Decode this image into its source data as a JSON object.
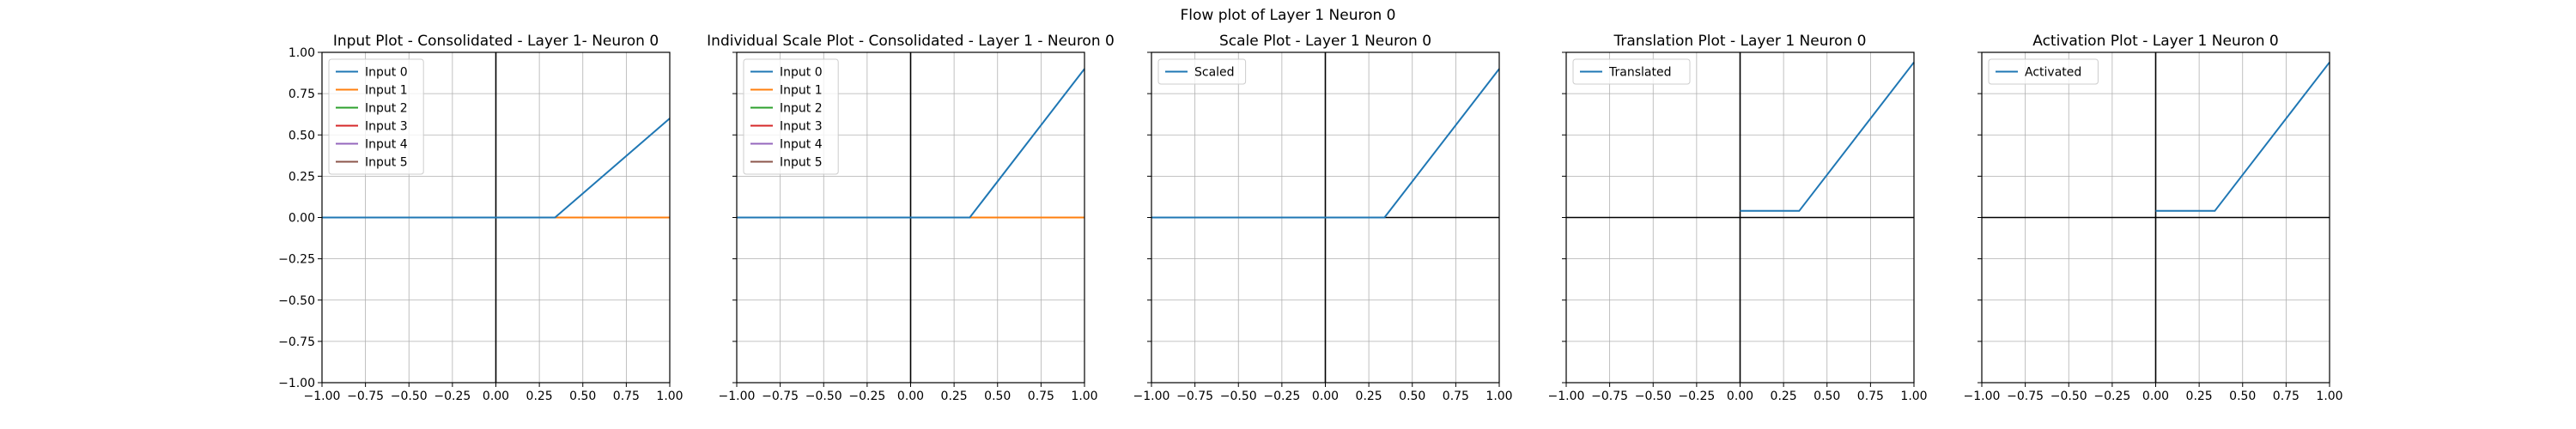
{
  "figure": {
    "suptitle": "Flow plot of Layer 1 Neuron 0"
  },
  "chart_data": [
    {
      "type": "line",
      "title": "Input Plot - Consolidated - Layer 1- Neuron 0",
      "xlim": [
        -1.0,
        1.0
      ],
      "ylim": [
        -1.0,
        1.0
      ],
      "xticks": [
        "−1.00",
        "−0.75",
        "−0.50",
        "−0.25",
        "0.00",
        "0.25",
        "0.50",
        "0.75",
        "1.00"
      ],
      "yticks": [
        "−1.00",
        "−0.75",
        "−0.50",
        "−0.25",
        "0.00",
        "0.25",
        "0.50",
        "0.75",
        "1.00"
      ],
      "show_ytick_labels": true,
      "grid": true,
      "legend_position": "top-left",
      "series": [
        {
          "name": "Input 0",
          "color": "#1f77b4",
          "x": [
            -1.0,
            0.34,
            1.0
          ],
          "y": [
            0.0,
            0.0,
            0.6
          ]
        },
        {
          "name": "Input 1",
          "color": "#ff7f0e",
          "x": [
            -1.0,
            1.0
          ],
          "y": [
            0.0,
            0.0
          ]
        },
        {
          "name": "Input 2",
          "color": "#2ca02c",
          "x": [
            -1.0,
            1.0
          ],
          "y": [
            0.0,
            0.0
          ]
        },
        {
          "name": "Input 3",
          "color": "#d62728",
          "x": [
            -1.0,
            1.0
          ],
          "y": [
            0.0,
            0.0
          ]
        },
        {
          "name": "Input 4",
          "color": "#9467bd",
          "x": [
            -1.0,
            1.0
          ],
          "y": [
            0.0,
            0.0
          ]
        },
        {
          "name": "Input 5",
          "color": "#8c564b",
          "x": [
            -1.0,
            1.0
          ],
          "y": [
            0.0,
            0.0
          ]
        }
      ]
    },
    {
      "type": "line",
      "title": "Individual Scale Plot - Consolidated - Layer 1 - Neuron 0",
      "xlim": [
        -1.0,
        1.0
      ],
      "ylim": [
        -1.0,
        1.0
      ],
      "xticks": [
        "−1.00",
        "−0.75",
        "−0.50",
        "−0.25",
        "0.00",
        "0.25",
        "0.50",
        "0.75",
        "1.00"
      ],
      "yticks": [],
      "show_ytick_labels": false,
      "grid": true,
      "legend_position": "top-left",
      "series": [
        {
          "name": "Input 0",
          "color": "#1f77b4",
          "x": [
            -1.0,
            0.34,
            1.0
          ],
          "y": [
            0.0,
            0.0,
            0.9
          ]
        },
        {
          "name": "Input 1",
          "color": "#ff7f0e",
          "x": [
            -1.0,
            1.0
          ],
          "y": [
            0.0,
            0.0
          ]
        },
        {
          "name": "Input 2",
          "color": "#2ca02c",
          "x": [
            -1.0,
            1.0
          ],
          "y": [
            0.0,
            0.0
          ]
        },
        {
          "name": "Input 3",
          "color": "#d62728",
          "x": [
            -1.0,
            1.0
          ],
          "y": [
            0.0,
            0.0
          ]
        },
        {
          "name": "Input 4",
          "color": "#9467bd",
          "x": [
            -1.0,
            1.0
          ],
          "y": [
            0.0,
            0.0
          ]
        },
        {
          "name": "Input 5",
          "color": "#8c564b",
          "x": [
            -1.0,
            1.0
          ],
          "y": [
            0.0,
            0.0
          ]
        }
      ]
    },
    {
      "type": "line",
      "title": "Scale Plot - Layer 1 Neuron 0",
      "xlim": [
        -1.0,
        1.0
      ],
      "ylim": [
        -1.0,
        1.0
      ],
      "xticks": [
        "−1.00",
        "−0.75",
        "−0.50",
        "−0.25",
        "0.00",
        "0.25",
        "0.50",
        "0.75",
        "1.00"
      ],
      "yticks": [],
      "show_ytick_labels": false,
      "grid": true,
      "legend_position": "top-left",
      "series": [
        {
          "name": "Scaled",
          "color": "#1f77b4",
          "x": [
            -1.0,
            0.34,
            1.0
          ],
          "y": [
            0.0,
            0.0,
            0.9
          ]
        }
      ]
    },
    {
      "type": "line",
      "title": "Translation Plot - Layer 1 Neuron 0",
      "xlim": [
        -1.0,
        1.0
      ],
      "ylim": [
        -1.0,
        1.0
      ],
      "xticks": [
        "−1.00",
        "−0.75",
        "−0.50",
        "−0.25",
        "0.00",
        "0.25",
        "0.50",
        "0.75",
        "1.00"
      ],
      "yticks": [],
      "show_ytick_labels": false,
      "grid": true,
      "legend_position": "top-left",
      "series": [
        {
          "name": "Translated",
          "color": "#1f77b4",
          "x": [
            0.0,
            0.34,
            1.0
          ],
          "y": [
            0.04,
            0.04,
            0.94
          ]
        }
      ]
    },
    {
      "type": "line",
      "title": "Activation Plot - Layer 1 Neuron 0",
      "xlim": [
        -1.0,
        1.0
      ],
      "ylim": [
        -1.0,
        1.0
      ],
      "xticks": [
        "−1.00",
        "−0.75",
        "−0.50",
        "−0.25",
        "0.00",
        "0.25",
        "0.50",
        "0.75",
        "1.00"
      ],
      "yticks": [],
      "show_ytick_labels": false,
      "grid": true,
      "legend_position": "top-left",
      "series": [
        {
          "name": "Activated",
          "color": "#1f77b4",
          "x": [
            0.0,
            0.34,
            1.0
          ],
          "y": [
            0.04,
            0.04,
            0.94
          ]
        }
      ]
    }
  ]
}
